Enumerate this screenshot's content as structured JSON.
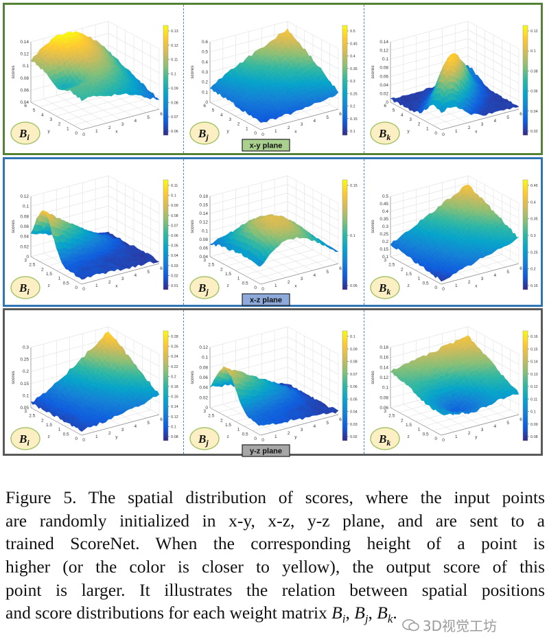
{
  "figure": {
    "rows": [
      {
        "plane_label": "x-y plane",
        "border_color": "#548235",
        "label_bg": "#a9d08e"
      },
      {
        "plane_label": "x-z plane",
        "border_color": "#2e75b6",
        "label_bg": "#8eaadb"
      },
      {
        "plane_label": "y-z plane",
        "border_color": "#595959",
        "label_bg": "#a6a6a6"
      }
    ],
    "colormap": [
      "#352a87",
      "#0f5cdd",
      "#1481d6",
      "#06a4ca",
      "#2eb7a4",
      "#87bf77",
      "#d1bb59",
      "#fec832",
      "#f9fb0e"
    ],
    "z_label": "scores",
    "panels": [
      {
        "matrix": "B",
        "sub": "i",
        "axis1": "x",
        "axis2": "y",
        "axis1_ticks": [
          "0",
          "1",
          "2",
          "3",
          "4",
          "5",
          "6"
        ],
        "axis2_ticks": [
          "0",
          "1",
          "2",
          "3",
          "4",
          "5",
          "6"
        ],
        "z_ticks": [
          "0.04",
          "0.06",
          "0.08",
          "0.1",
          "0.12",
          "0.14"
        ],
        "colorbar_ticks": [
          "0.06",
          "0.07",
          "0.08",
          "0.09",
          "0.1",
          "0.11",
          "0.12",
          "0.13"
        ]
      },
      {
        "matrix": "B",
        "sub": "j",
        "axis1": "x",
        "axis2": "y",
        "axis1_ticks": [
          "0",
          "1",
          "2",
          "3",
          "4",
          "5",
          "6"
        ],
        "axis2_ticks": [
          "0",
          "1",
          "2",
          "3",
          "4",
          "5",
          "6"
        ],
        "z_ticks": [
          "0",
          "0.1",
          "0.2",
          "0.3",
          "0.4",
          "0.5",
          "0.6"
        ],
        "colorbar_ticks": [
          "0.1",
          "0.15",
          "0.2",
          "0.25",
          "0.3",
          "0.35",
          "0.4",
          "0.45",
          "0.5"
        ]
      },
      {
        "matrix": "B",
        "sub": "k",
        "axis1": "x",
        "axis2": "y",
        "axis1_ticks": [
          "0",
          "1",
          "2",
          "3",
          "4",
          "5",
          "6"
        ],
        "axis2_ticks": [
          "0",
          "1",
          "2",
          "3",
          "4",
          "5",
          "6"
        ],
        "z_ticks": [
          "0",
          "0.02",
          "0.04",
          "0.06",
          "0.08",
          "0.1",
          "0.12",
          "0.14"
        ],
        "colorbar_ticks": [
          "0.02",
          "0.04",
          "0.06",
          "0.08",
          "0.1",
          "0.12"
        ]
      },
      {
        "matrix": "B",
        "sub": "i",
        "axis1": "x",
        "axis2": "z",
        "axis1_ticks": [
          "0",
          "1",
          "2",
          "3",
          "4",
          "5",
          "6"
        ],
        "axis2_ticks": [
          "0",
          "0.5",
          "1",
          "1.5",
          "2",
          "2.5",
          "3"
        ],
        "z_ticks": [
          "0",
          "0.02",
          "0.04",
          "0.06",
          "0.08",
          "0.1",
          "0.12"
        ],
        "colorbar_ticks": [
          "0.01",
          "0.02",
          "0.03",
          "0.04",
          "0.05",
          "0.06",
          "0.07",
          "0.08",
          "0.09",
          "0.1",
          "0.11"
        ]
      },
      {
        "matrix": "B",
        "sub": "j",
        "axis1": "x",
        "axis2": "z",
        "axis1_ticks": [
          "0",
          "1",
          "2",
          "3",
          "4",
          "5",
          "6"
        ],
        "axis2_ticks": [
          "0",
          "0.5",
          "1",
          "1.5",
          "2",
          "2.5",
          "3"
        ],
        "z_ticks": [
          "0.04",
          "0.06",
          "0.08",
          "0.1",
          "0.12",
          "0.14",
          "0.16",
          "0.18"
        ],
        "colorbar_ticks": [
          "0.05",
          "0.1",
          "0.15"
        ]
      },
      {
        "matrix": "B",
        "sub": "k",
        "axis1": "x",
        "axis2": "z",
        "axis1_ticks": [
          "0",
          "1",
          "2",
          "3",
          "4",
          "5",
          "6"
        ],
        "axis2_ticks": [
          "0",
          "0.5",
          "1",
          "1.5",
          "2",
          "2.5",
          "3"
        ],
        "z_ticks": [
          "0.1",
          "0.15",
          "0.2",
          "0.25",
          "0.3",
          "0.35",
          "0.4",
          "0.45",
          "0.5"
        ],
        "colorbar_ticks": [
          "0.15",
          "0.2",
          "0.25",
          "0.3",
          "0.35",
          "0.4",
          "0.45"
        ]
      },
      {
        "matrix": "B",
        "sub": "i",
        "axis1": "y",
        "axis2": "z",
        "axis1_ticks": [
          "0",
          "1",
          "2",
          "3",
          "4",
          "5",
          "6"
        ],
        "axis2_ticks": [
          "0",
          "0.5",
          "1",
          "1.5",
          "2",
          "2.5",
          "3"
        ],
        "z_ticks": [
          "0.05",
          "0.1",
          "0.15",
          "0.2",
          "0.25",
          "0.3"
        ],
        "colorbar_ticks": [
          "0.08",
          "0.1",
          "0.12",
          "0.14",
          "0.16",
          "0.18",
          "0.2",
          "0.22",
          "0.24",
          "0.26",
          "0.28"
        ]
      },
      {
        "matrix": "B",
        "sub": "j",
        "axis1": "y",
        "axis2": "z",
        "axis1_ticks": [
          "0",
          "1",
          "2",
          "3",
          "4",
          "5",
          "6"
        ],
        "axis2_ticks": [
          "0",
          "0.5",
          "1",
          "1.5",
          "2",
          "2.5",
          "3"
        ],
        "z_ticks": [
          "0",
          "0.02",
          "0.04",
          "0.06",
          "0.08",
          "0.1",
          "0.12"
        ],
        "colorbar_ticks": [
          "0.02",
          "0.03",
          "0.04",
          "0.05",
          "0.06",
          "0.07",
          "0.08",
          "0.09",
          "0.1"
        ]
      },
      {
        "matrix": "B",
        "sub": "k",
        "axis1": "y",
        "axis2": "z",
        "axis1_ticks": [
          "0",
          "1",
          "2",
          "3",
          "4",
          "5",
          "6"
        ],
        "axis2_ticks": [
          "0",
          "0.5",
          "1",
          "1.5",
          "2",
          "2.5",
          "3"
        ],
        "z_ticks": [
          "0.06",
          "0.08",
          "0.1",
          "0.12",
          "0.14",
          "0.16",
          "0.18"
        ],
        "colorbar_ticks": [
          "0.08",
          "0.09",
          "0.1",
          "0.11",
          "0.12",
          "0.13",
          "0.14",
          "0.15",
          "0.16"
        ]
      }
    ]
  },
  "caption": {
    "lines": [
      "Figure 5. The spatial distribution of scores, where the input points",
      "are randomly initialized in x-y, x-z, y-z plane, and are sent to a",
      "trained ScoreNet.  When the corresponding height of a point is",
      "higher (or the color is closer to yellow), the output score of this",
      "point is larger. It illustrates the relation between spatial positions",
      "and score distributions for each weight matrix "
    ],
    "matrices": [
      {
        "base": "B",
        "sub": "i"
      },
      {
        "base": "B",
        "sub": "j"
      },
      {
        "base": "B",
        "sub": "k"
      }
    ],
    "end": "."
  },
  "watermark": {
    "text": "3D视觉工坊",
    "icon": "wechat-icon"
  }
}
